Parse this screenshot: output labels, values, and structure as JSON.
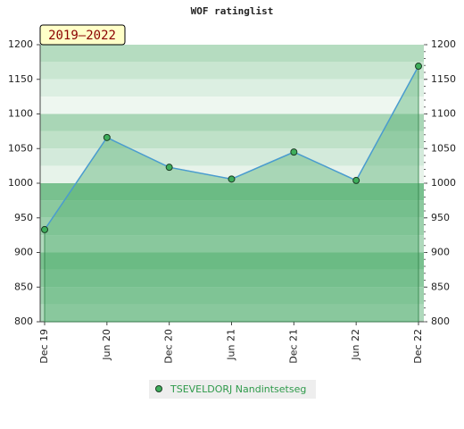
{
  "chart_data": {
    "type": "line",
    "title": "WOF ratinglist",
    "annotation": "2019–2022",
    "categories": [
      "Dec 19",
      "Jun 20",
      "Dec 20",
      "Jun 21",
      "Dec 21",
      "Jun 22",
      "Dec 22"
    ],
    "series": [
      {
        "name": "TSEVELDORJ Nandintsetseg",
        "color": "#3a8a4e",
        "values": [
          933,
          1066,
          1023,
          1006,
          1045,
          1004,
          1169
        ]
      }
    ],
    "ylim": [
      800,
      1200
    ],
    "yticks": [
      800,
      850,
      900,
      950,
      1000,
      1050,
      1100,
      1150,
      1200
    ],
    "grid": true
  }
}
